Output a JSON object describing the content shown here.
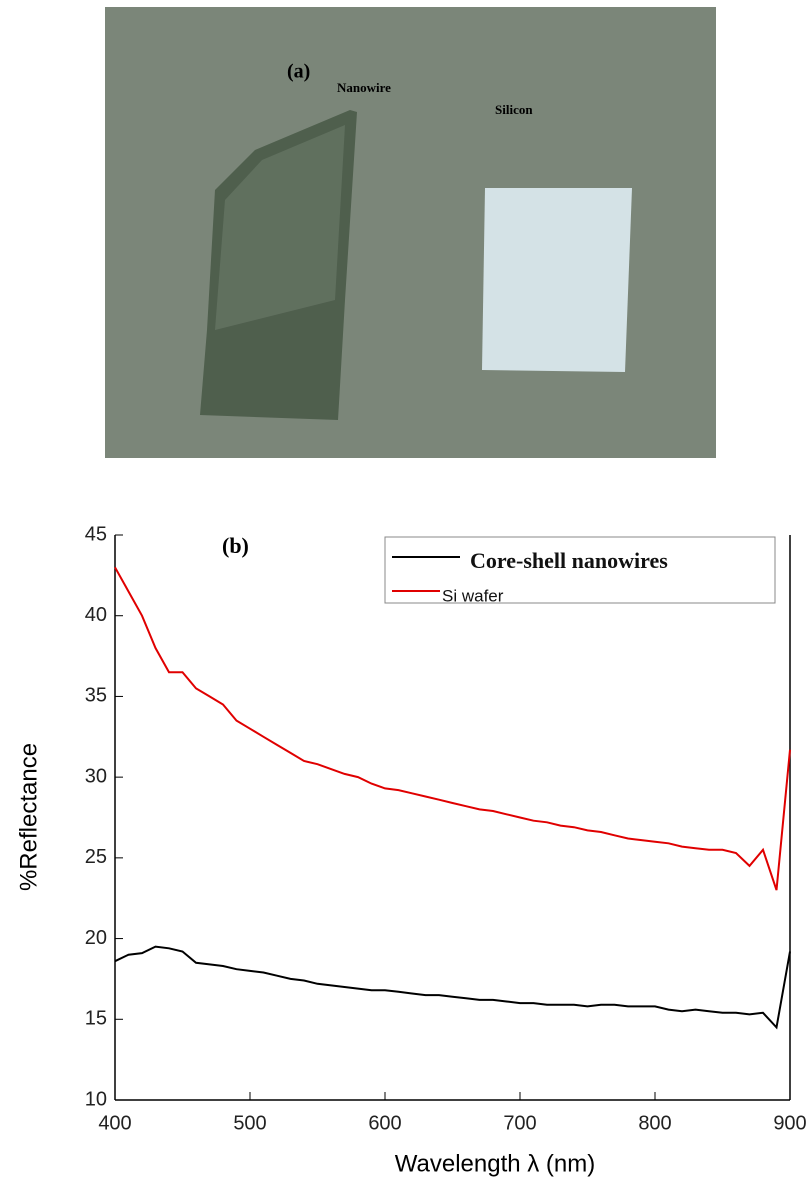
{
  "photo": {
    "label": "(a)",
    "texts": [
      "Nanowire",
      "Silicon"
    ]
  },
  "chart_data": {
    "type": "line",
    "panel_label": "(b)",
    "xlabel": "Wavelength λ  (nm)",
    "ylabel": "%Reflectance",
    "x": [
      400,
      410,
      420,
      430,
      440,
      450,
      460,
      470,
      480,
      490,
      500,
      510,
      520,
      530,
      540,
      550,
      560,
      570,
      580,
      590,
      600,
      610,
      620,
      630,
      640,
      650,
      660,
      670,
      680,
      690,
      700,
      710,
      720,
      730,
      740,
      750,
      760,
      770,
      780,
      790,
      800,
      810,
      820,
      830,
      840,
      850,
      860,
      870,
      880,
      890,
      900
    ],
    "series": [
      {
        "name": "Core-shell nanowires",
        "color": "#000000",
        "values": [
          18.6,
          19,
          19.1,
          19.5,
          19.4,
          19.2,
          18.5,
          18.4,
          18.3,
          18.1,
          18,
          17.9,
          17.7,
          17.5,
          17.4,
          17.2,
          17.1,
          17,
          16.9,
          16.8,
          16.8,
          16.7,
          16.6,
          16.5,
          16.5,
          16.4,
          16.3,
          16.2,
          16.2,
          16.1,
          16,
          16,
          15.9,
          15.9,
          15.9,
          15.8,
          15.9,
          15.9,
          15.8,
          15.8,
          15.8,
          15.6,
          15.5,
          15.6,
          15.5,
          15.4,
          15.4,
          15.3,
          15.4,
          14.5,
          19.2
        ]
      },
      {
        "name": "Si wafer",
        "color": "#e00000",
        "values": [
          43,
          41.5,
          40,
          38,
          36.5,
          36.5,
          35.5,
          35,
          34.5,
          33.5,
          33,
          32.5,
          32,
          31.5,
          31,
          30.8,
          30.5,
          30.2,
          30,
          29.6,
          29.3,
          29.2,
          29,
          28.8,
          28.6,
          28.4,
          28.2,
          28,
          27.9,
          27.7,
          27.5,
          27.3,
          27.2,
          27,
          26.9,
          26.7,
          26.6,
          26.4,
          26.2,
          26.1,
          26,
          25.9,
          25.7,
          25.6,
          25.5,
          25.5,
          25.3,
          24.5,
          25.5,
          23,
          31.7
        ]
      }
    ],
    "xlim": [
      400,
      900
    ],
    "xticks": [
      400,
      500,
      600,
      700,
      800,
      900
    ],
    "ylim": [
      10,
      45
    ],
    "yticks": [
      10,
      15,
      20,
      25,
      30,
      35,
      40,
      45
    ]
  }
}
